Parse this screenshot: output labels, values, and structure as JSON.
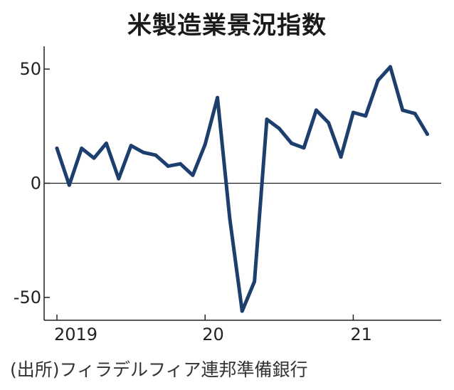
{
  "chart_data": {
    "type": "line",
    "title": "米製造業景況指数",
    "xlabel": "",
    "ylabel": "",
    "ylim": [
      -60,
      60
    ],
    "y_ticks": [
      50,
      0,
      -50
    ],
    "y_tick_labels": [
      "50",
      "0",
      "-50"
    ],
    "x_ticks": [
      0,
      12,
      24
    ],
    "x_tick_labels": [
      "2019",
      "20",
      "21"
    ],
    "grid": false,
    "series": [
      {
        "color": "#1d3f6e",
        "x": [
          0,
          1,
          2,
          3,
          4,
          5,
          6,
          7,
          8,
          9,
          10,
          11,
          12,
          13,
          14,
          15,
          16,
          17,
          18,
          19,
          20,
          21,
          22,
          23,
          24,
          25,
          26,
          27,
          28,
          29,
          30
        ],
        "values": [
          15.3,
          -0.8,
          15.3,
          11.0,
          17.5,
          2.0,
          16.5,
          13.5,
          12.3,
          7.5,
          8.5,
          3.5,
          17.0,
          37.5,
          -15.5,
          -56.0,
          -43.0,
          28.0,
          24.0,
          17.5,
          15.5,
          32.0,
          26.5,
          11.5,
          31.0,
          29.5,
          45.0,
          51.0,
          32.0,
          30.5,
          21.5
        ]
      }
    ]
  },
  "source_note": "(出所)フィラデルフィア連邦準備銀行",
  "colors": {
    "line": "#1d3f6e",
    "axis": "#222222"
  }
}
